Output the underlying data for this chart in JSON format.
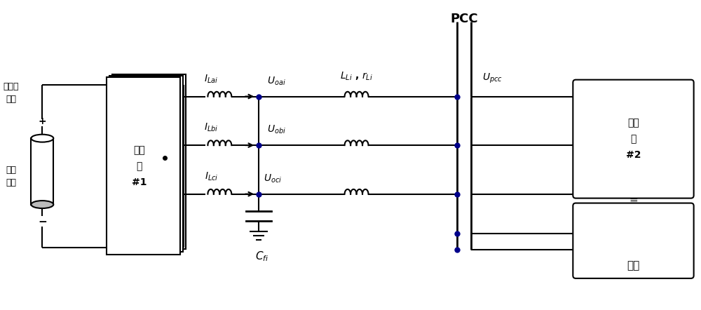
{
  "bg_color": "#ffffff",
  "line_color": "#000000",
  "blue_dot_color": "#00008B",
  "text_color": "#000000",
  "fig_width": 10.0,
  "fig_height": 4.42,
  "dpi": 100,
  "labels": {
    "distributed_source": "分布式\n电源",
    "storage": "储能\n单元",
    "inverter1": "逆变\n器\n#1",
    "inverter2": "逆变\n器\n#2",
    "load": "负载",
    "PCC": "PCC",
    "ILai": "$I_{Lai}$",
    "ILbi": "$I_{Lbi}$",
    "ILci": "$I_{Lci}$",
    "Uoai": "$U_{oai}$",
    "Uobi": "$U_{obi}$",
    "Uoci": "$U_{oci}$",
    "LLi_rLi": "$L_{Li}$ , $r_{Li}$",
    "Upcc": "$U_{pcc}$",
    "Cfi": "$C_{fi}$"
  }
}
